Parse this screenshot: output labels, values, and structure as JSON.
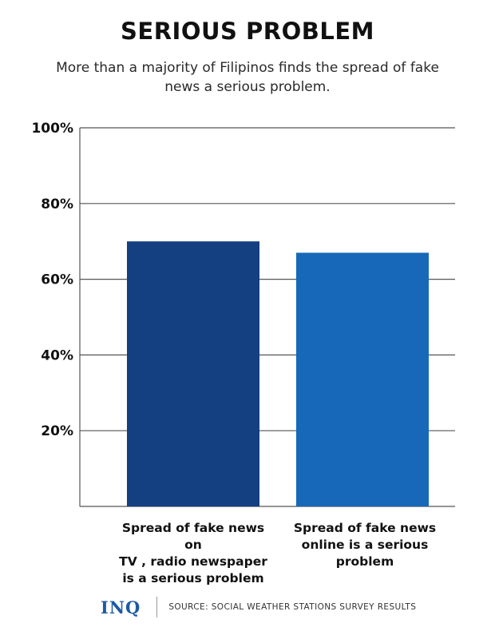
{
  "title": "SERIOUS PROBLEM",
  "subtitle": "More than a majority of Filipinos finds the spread of fake news a serious problem.",
  "chart_data": {
    "type": "bar",
    "categories": [
      "Spread of fake news on TV , radio newspaper is a serious problem",
      "Spread of fake news online is a serious problem"
    ],
    "values": [
      70,
      67
    ],
    "bar_colors": [
      "#143f80",
      "#1768b8"
    ],
    "y_ticks": [
      "20%",
      "40%",
      "60%",
      "80%",
      "100%"
    ],
    "ylim": [
      0,
      100
    ],
    "grid": true
  },
  "category_labels": [
    [
      "Spread of fake news on",
      "TV , radio newspaper",
      "is a serious problem"
    ],
    [
      "Spread of fake news",
      "online is a serious",
      "problem"
    ]
  ],
  "footer": {
    "logo": "INQ",
    "source": "SOURCE:  SOCIAL WEATHER STATIONS SURVEY RESULTS"
  },
  "colors": {
    "grid": "#555555",
    "logo": "#1c5aa6"
  }
}
